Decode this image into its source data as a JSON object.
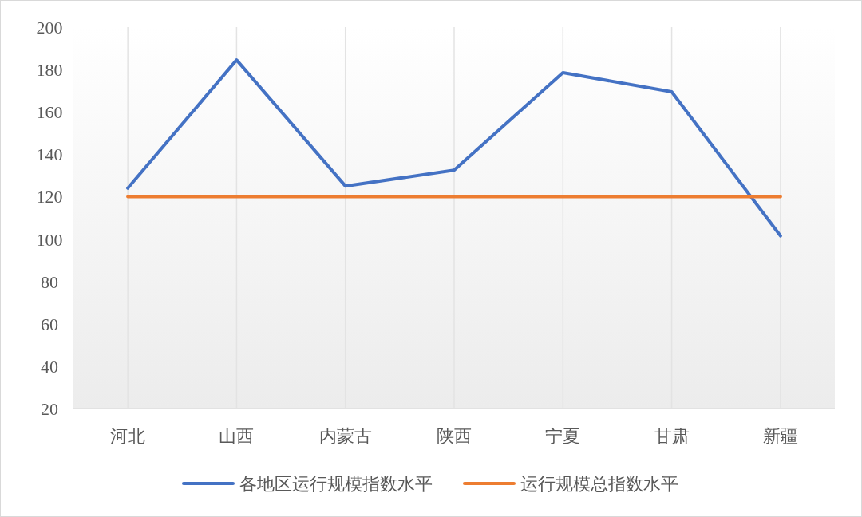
{
  "chart_data": {
    "type": "line",
    "categories": [
      "河北",
      "山西",
      "内蒙古",
      "陕西",
      "宁夏",
      "甘肃",
      "新疆"
    ],
    "series": [
      {
        "name": "各地区运行规模指数水平",
        "color": "#4472c4",
        "values": [
          124,
          184.5,
          125,
          132.5,
          178.5,
          169.5,
          101.5
        ]
      },
      {
        "name": "运行规模总指数水平",
        "color": "#ed7d31",
        "values": [
          120,
          120,
          120,
          120,
          120,
          120,
          120
        ]
      }
    ],
    "ylim": [
      20,
      200
    ],
    "yticks": [
      20,
      40,
      60,
      80,
      100,
      120,
      140,
      160,
      180,
      200
    ],
    "grid": "x",
    "legend": "bottom",
    "marker": "none",
    "line_style": "solid"
  }
}
